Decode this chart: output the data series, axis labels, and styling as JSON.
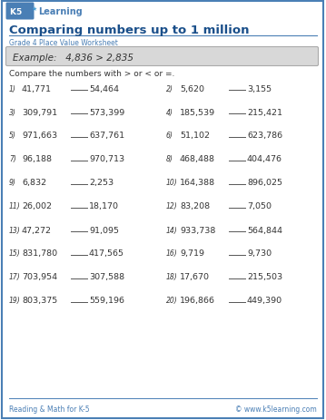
{
  "title": "Comparing numbers up to 1 million",
  "subtitle": "Grade 4 Place Value Worksheet",
  "example_text": "Example:   4,836 > 2,835",
  "instruction": "Compare the numbers with > or < or =.",
  "problems": [
    [
      "1)",
      "41,771",
      "54,464",
      "2)",
      "5,620",
      "3,155"
    ],
    [
      "3)",
      "309,791",
      "573,399",
      "4)",
      "185,539",
      "215,421"
    ],
    [
      "5)",
      "971,663",
      "637,761",
      "6)",
      "51,102",
      "623,786"
    ],
    [
      "7)",
      "96,188",
      "970,713",
      "8)",
      "468,488",
      "404,476"
    ],
    [
      "9)",
      "6,832",
      "2,253",
      "10)",
      "164,388",
      "896,025"
    ],
    [
      "11)",
      "26,002",
      "18,170",
      "12)",
      "83,208",
      "7,050"
    ],
    [
      "13)",
      "47,272",
      "91,095",
      "14)",
      "933,738",
      "564,844"
    ],
    [
      "15)",
      "831,780",
      "417,565",
      "16)",
      "9,719",
      "9,730"
    ],
    [
      "17)",
      "703,954",
      "307,588",
      "18)",
      "17,670",
      "215,503"
    ],
    [
      "19)",
      "803,375",
      "559,196",
      "20)",
      "196,866",
      "449,390"
    ]
  ],
  "footer_left": "Reading & Math for K-5",
  "footer_right": "© www.k5learning.com",
  "bg_color": "#ffffff",
  "border_color": "#4a7fb5",
  "title_color": "#1a4f8a",
  "subtitle_color": "#4a7fb5",
  "example_bg": "#d8d8d8",
  "example_border": "#aaaaaa",
  "text_color": "#333333",
  "footer_color": "#4a7fb5",
  "logo_bg": "#4a7fb5",
  "logo_text_color": "#ffffff",
  "learning_color": "#4a7fb5"
}
